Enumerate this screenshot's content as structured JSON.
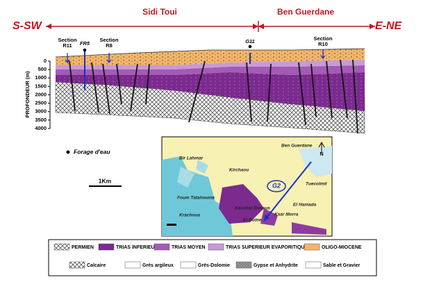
{
  "header": {
    "left_end": "S-SW",
    "right_end": "E-NE",
    "regions": [
      "Sidi Toui",
      "Ben Guerdane"
    ]
  },
  "section": {
    "depth_label": "PROFONDEUR (m)",
    "depth_ticks": [
      0,
      500,
      1000,
      1500,
      2000,
      2500,
      3000,
      3500,
      4000
    ],
    "labels": [
      {
        "title": "Section",
        "name": "R11"
      },
      {
        "title": "",
        "name": "FR5"
      },
      {
        "title": "Section",
        "name": "R8"
      },
      {
        "title": "",
        "name": "G11"
      },
      {
        "title": "Section",
        "name": "R10"
      }
    ]
  },
  "well_legend": "Forage d'eau",
  "scale": "1Km",
  "map": {
    "north": "N",
    "circle": "G2",
    "labels": [
      "Ben Guerdane",
      "Bir Lahmar",
      "Kirchaou",
      "Tuecolmit",
      "El Hamada",
      "Foum Tatahouine",
      "Krachoua",
      "Kassbat Ennous",
      "Ksar Morra",
      "El Guine"
    ]
  },
  "legend": {
    "formations": [
      "PERMIEN",
      "TRIAS INFERIEUR",
      "TRIAS MOYEN",
      "TRIAS SUPERIEUR EVAPORITIQUE",
      "OLIGO-MIOCENE"
    ],
    "lithologies": [
      "Calcaire",
      "Grès argileux",
      "Grès-Dolomie",
      "Gypse et Anhydrite",
      "Sable et Gravier"
    ]
  }
}
